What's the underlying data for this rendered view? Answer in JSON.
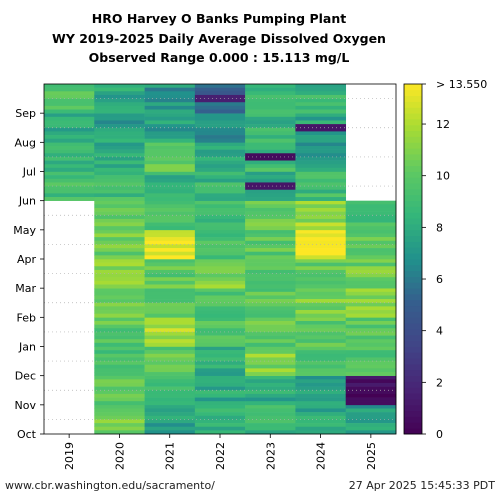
{
  "titles": {
    "line1": "HRO Harvey O Banks Pumping Plant",
    "line2": "WY 2019-2025 Daily Average Dissolved Oxygen",
    "line3": "Observed Range 0.000 : 15.113 mg/L"
  },
  "footer": {
    "source": "www.cbr.washington.edu/sacramento/",
    "timestamp": "27 Apr 2025 15:45:33 PDT"
  },
  "chart_data": {
    "type": "heatmap",
    "x_categories": [
      "2019",
      "2020",
      "2021",
      "2022",
      "2023",
      "2024",
      "2025"
    ],
    "y_categories": [
      "Oct",
      "Nov",
      "Dec",
      "Jan",
      "Feb",
      "Mar",
      "Apr",
      "May",
      "Jun",
      "Jul",
      "Aug",
      "Sep"
    ],
    "colorbar": {
      "min": 0,
      "max": 13.55,
      "ticks": [
        0,
        2,
        4,
        6,
        8,
        10,
        12
      ],
      "max_label": "> 13.550",
      "colormap": "viridis"
    },
    "grid": true,
    "monthly_values": [
      [
        null,
        10.5,
        7.5,
        8.0,
        8.5,
        8.0,
        7.5
      ],
      [
        null,
        10.0,
        9.0,
        8.0,
        8.0,
        7.5,
        1.0
      ],
      [
        null,
        9.5,
        10.0,
        8.0,
        11.0,
        9.0,
        9.5
      ],
      [
        null,
        10.0,
        12.0,
        9.5,
        10.0,
        10.0,
        10.0
      ],
      [
        null,
        10.5,
        10.0,
        9.5,
        10.0,
        11.0,
        11.0
      ],
      [
        null,
        11.5,
        10.0,
        11.0,
        10.0,
        10.0,
        10.5
      ],
      [
        null,
        10.5,
        13.0,
        9.5,
        10.0,
        13.0,
        10.0
      ],
      [
        null,
        10.0,
        9.5,
        9.0,
        10.5,
        11.5,
        9.0
      ],
      [
        9.0,
        9.0,
        8.5,
        8.5,
        8.0,
        9.0,
        null
      ],
      [
        8.5,
        8.0,
        10.0,
        7.5,
        9.0,
        7.5,
        null
      ],
      [
        8.0,
        7.5,
        7.5,
        7.0,
        8.5,
        8.0,
        null
      ],
      [
        9.5,
        8.0,
        7.0,
        5.0,
        9.0,
        8.5,
        null
      ]
    ],
    "notable_lows": [
      {
        "year": "2025",
        "month": "Nov",
        "value": 0.5
      },
      {
        "year": "2024",
        "month": "Aug",
        "value": 1.0
      },
      {
        "year": "2023",
        "month": "Jul",
        "value": 0.5
      },
      {
        "year": "2023",
        "month": "Jun",
        "value": 1.0
      },
      {
        "year": "2022",
        "month": "Sep",
        "value": 1.5
      }
    ]
  }
}
